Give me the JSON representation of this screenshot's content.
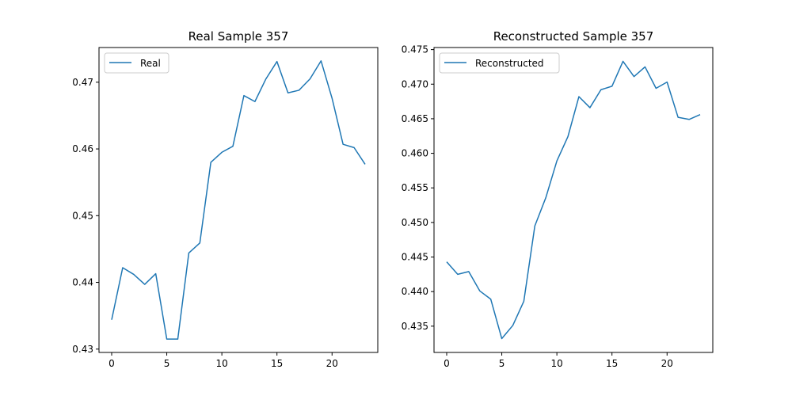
{
  "chart_data": [
    {
      "type": "line",
      "title": "Real Sample 357",
      "xlabel": "",
      "ylabel": "",
      "x": [
        0,
        1,
        2,
        3,
        4,
        5,
        6,
        7,
        8,
        9,
        10,
        11,
        12,
        13,
        14,
        15,
        16,
        17,
        18,
        19,
        20,
        21,
        22,
        23
      ],
      "series": [
        {
          "name": "Real",
          "color": "#1f77b4",
          "values": [
            0.4344,
            0.4422,
            0.4412,
            0.4397,
            0.4413,
            0.4315,
            0.4315,
            0.4444,
            0.4459,
            0.458,
            0.4595,
            0.4604,
            0.468,
            0.4671,
            0.4705,
            0.4731,
            0.4684,
            0.4688,
            0.4705,
            0.4732,
            0.4676,
            0.4607,
            0.4602,
            0.4577
          ]
        }
      ],
      "xlim": [
        -1.15,
        24.15
      ],
      "ylim": [
        0.4295,
        0.4752
      ],
      "xticks": [
        0,
        5,
        10,
        15,
        20
      ],
      "xtick_labels": [
        "0",
        "5",
        "10",
        "15",
        "20"
      ],
      "yticks": [
        0.43,
        0.44,
        0.45,
        0.46,
        0.47
      ],
      "ytick_labels": [
        "0.43",
        "0.44",
        "0.45",
        "0.46",
        "0.47"
      ],
      "legend": "upper-left",
      "grid": false
    },
    {
      "type": "line",
      "title": "Reconstructed Sample 357",
      "xlabel": "",
      "ylabel": "",
      "x": [
        0,
        1,
        2,
        3,
        4,
        5,
        6,
        7,
        8,
        9,
        10,
        11,
        12,
        13,
        14,
        15,
        16,
        17,
        18,
        19,
        20,
        21,
        22,
        23
      ],
      "series": [
        {
          "name": "Reconstructed",
          "color": "#1f77b4",
          "values": [
            0.4443,
            0.4425,
            0.4429,
            0.4401,
            0.4389,
            0.4332,
            0.4351,
            0.4386,
            0.4495,
            0.4536,
            0.4589,
            0.4624,
            0.4682,
            0.4666,
            0.4692,
            0.4697,
            0.4733,
            0.4711,
            0.4725,
            0.4694,
            0.4703,
            0.4652,
            0.4649,
            0.4656
          ]
        }
      ],
      "xlim": [
        -1.15,
        24.15
      ],
      "ylim": [
        0.4312,
        0.4753
      ],
      "xticks": [
        0,
        5,
        10,
        15,
        20
      ],
      "xtick_labels": [
        "0",
        "5",
        "10",
        "15",
        "20"
      ],
      "yticks": [
        0.435,
        0.44,
        0.445,
        0.45,
        0.455,
        0.46,
        0.465,
        0.47,
        0.475
      ],
      "ytick_labels": [
        "0.435",
        "0.440",
        "0.445",
        "0.450",
        "0.455",
        "0.460",
        "0.465",
        "0.470",
        "0.475"
      ],
      "legend": "upper-left",
      "grid": false
    }
  ]
}
